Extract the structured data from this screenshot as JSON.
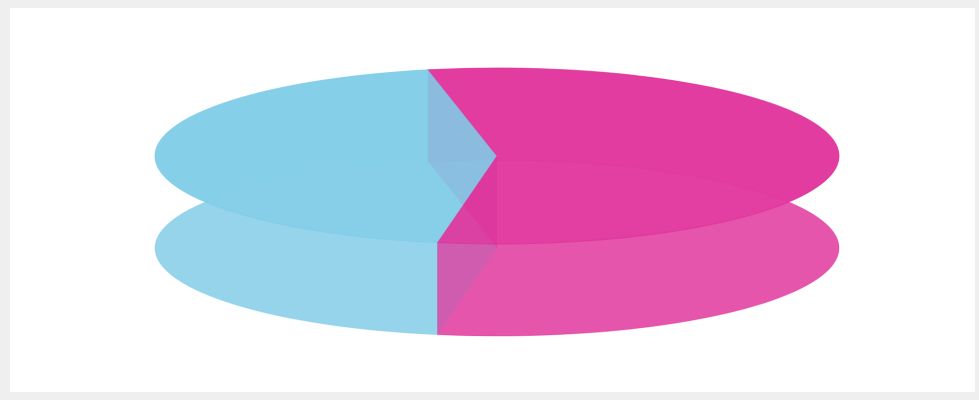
{
  "chart_data": {
    "type": "pie",
    "three_d": true,
    "series": [
      {
        "color": "#7ecbe8",
        "values": [
          44,
          56
        ],
        "colors": [
          "#7ecbe8",
          "#e0309a"
        ]
      }
    ]
  }
}
